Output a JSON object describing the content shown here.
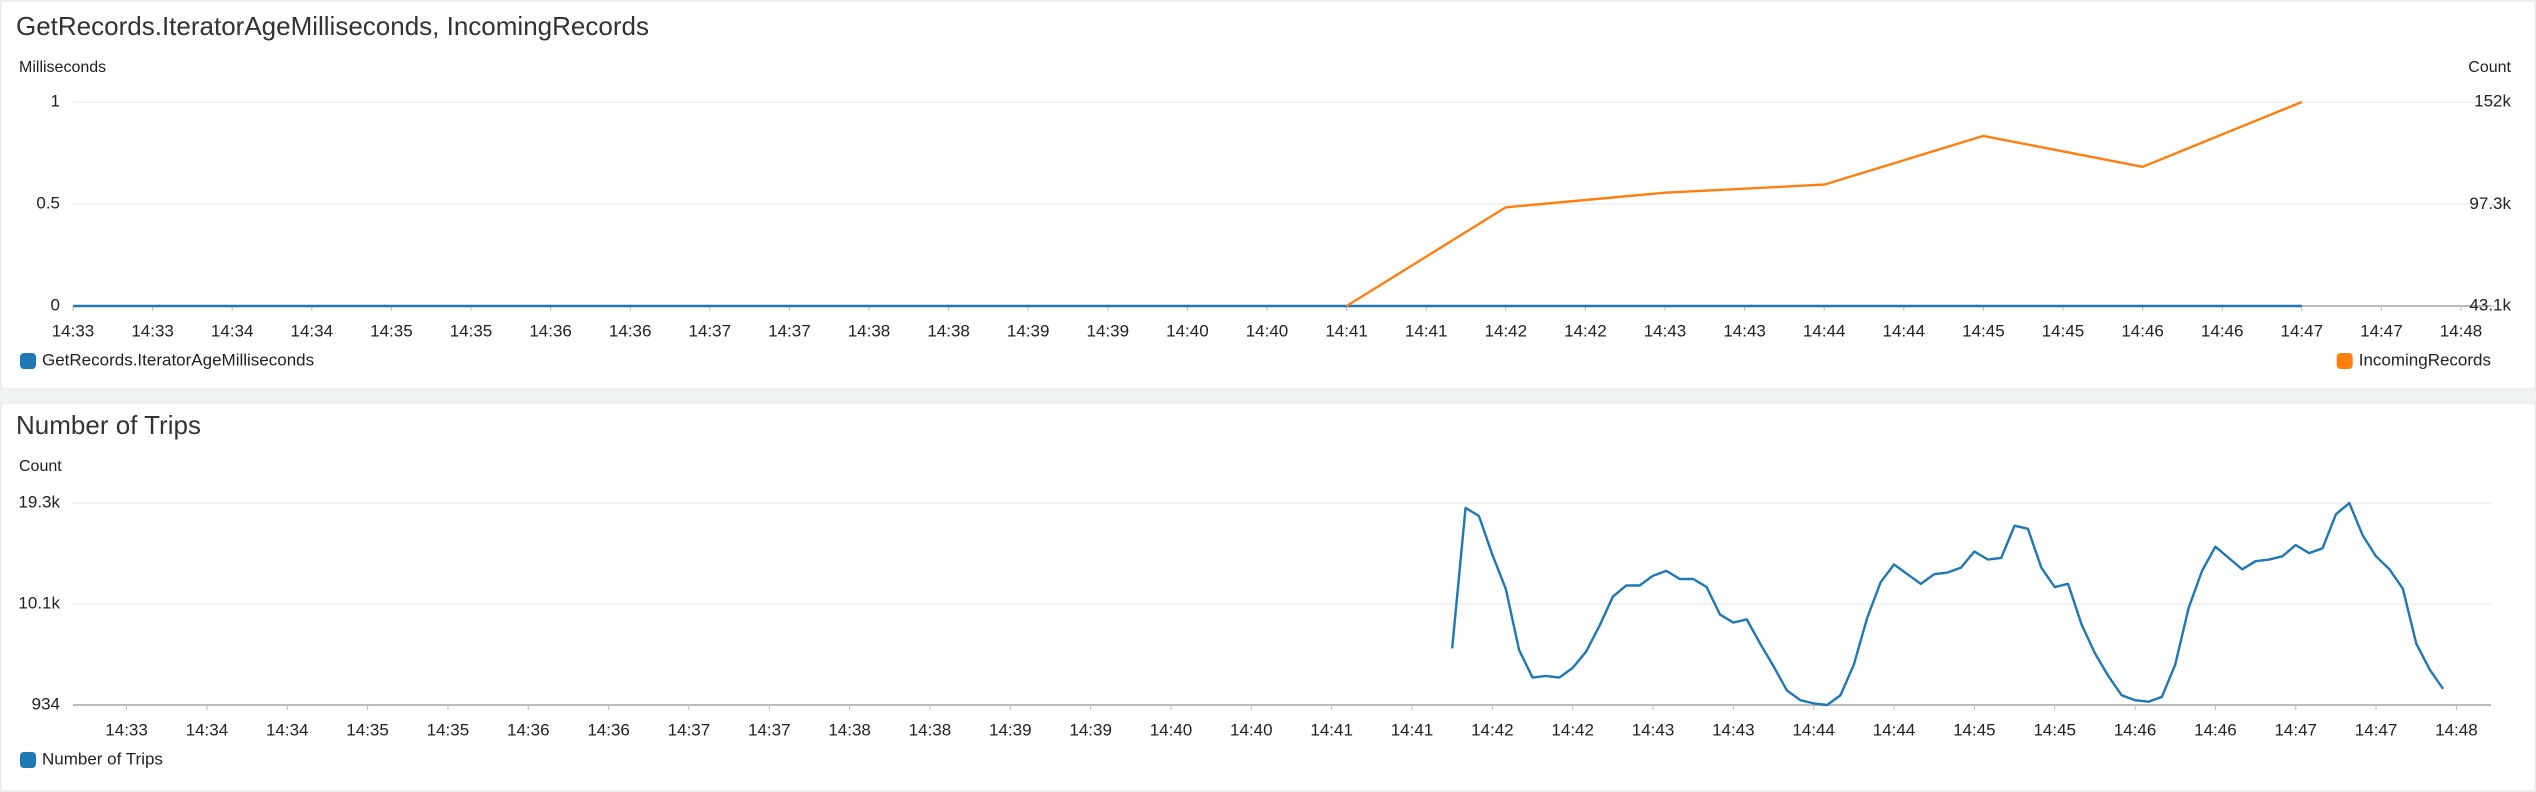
{
  "chart_data": [
    {
      "type": "line",
      "title": "GetRecords.IteratorAgeMilliseconds, IncomingRecords",
      "ylabel": "Milliseconds",
      "y2label": "Count",
      "categories": [
        "14:33",
        "14:33",
        "14:34",
        "14:34",
        "14:35",
        "14:35",
        "14:36",
        "14:36",
        "14:37",
        "14:37",
        "14:38",
        "14:38",
        "14:39",
        "14:39",
        "14:40",
        "14:40",
        "14:41",
        "14:41",
        "14:42",
        "14:42",
        "14:43",
        "14:43",
        "14:44",
        "14:44",
        "14:45",
        "14:45",
        "14:46",
        "14:46",
        "14:47",
        "14:47",
        "14:48"
      ],
      "ylim": [
        0,
        1
      ],
      "yticks": [
        0,
        0.5,
        1
      ],
      "y2lim": [
        43100,
        152000
      ],
      "y2ticks": [
        {
          "value": 43100,
          "label": "43.1k"
        },
        {
          "value": 97300,
          "label": "97.3k"
        },
        {
          "value": 152000,
          "label": "152k"
        }
      ],
      "grid": true,
      "legend": "bottom",
      "series": [
        {
          "name": "GetRecords.IteratorAgeMilliseconds",
          "color": "#1f77b4",
          "x": [
            "14:33",
            "14:34",
            "14:35",
            "14:36",
            "14:37",
            "14:38",
            "14:39",
            "14:40",
            "14:41",
            "14:42",
            "14:43",
            "14:44",
            "14:45",
            "14:46",
            "14:47"
          ],
          "values": [
            0,
            0,
            0,
            0,
            0,
            0,
            0,
            0,
            0,
            0,
            0,
            0,
            0,
            0,
            0
          ]
        },
        {
          "name": "IncomingRecords",
          "color": "#ff7f0e",
          "axis": "y2",
          "x": [
            "14:41",
            "14:42",
            "14:43",
            "14:44",
            "14:45",
            "14:46",
            "14:47"
          ],
          "values": [
            43100,
            95800,
            103600,
            107900,
            133900,
            117400,
            152000
          ]
        }
      ]
    },
    {
      "type": "line",
      "title": "Number of Trips",
      "ylabel": "Count",
      "categories": [
        null,
        null,
        null,
        null,
        "14:33",
        null,
        null,
        null,
        null,
        null,
        "14:34",
        null,
        null,
        null,
        null,
        null,
        "14:34",
        null,
        null,
        null,
        null,
        null,
        "14:35",
        null,
        null,
        null,
        null,
        null,
        "14:35",
        null,
        null,
        null,
        null,
        null,
        "14:36",
        null,
        null,
        null,
        null,
        null,
        "14:36",
        null,
        null,
        null,
        null,
        null,
        "14:37",
        null,
        null,
        null,
        null,
        null,
        "14:37",
        null,
        null,
        null,
        null,
        null,
        "14:38",
        null,
        null,
        null,
        null,
        null,
        "14:38",
        null,
        null,
        null,
        null,
        null,
        "14:39",
        null,
        null,
        null,
        null,
        null,
        "14:39",
        null,
        null,
        null,
        null,
        null,
        "14:40",
        null,
        null,
        null,
        null,
        null,
        "14:40",
        null,
        null,
        null,
        null,
        null,
        "14:41",
        null,
        null,
        null,
        null,
        null,
        "14:41",
        null,
        null,
        null,
        null,
        null,
        "14:42",
        null,
        null,
        null,
        null,
        null,
        "14:42",
        null,
        null,
        null,
        null,
        null,
        "14:43",
        null,
        null,
        null,
        null,
        null,
        "14:43",
        null,
        null,
        null,
        null,
        null,
        "14:44",
        null,
        null,
        null,
        null,
        null,
        "14:44",
        null,
        null,
        null,
        null,
        null,
        "14:45",
        null,
        null,
        null,
        null,
        null,
        "14:45",
        null,
        null,
        null,
        null,
        null,
        "14:46",
        null,
        null,
        null,
        null,
        null,
        "14:46",
        null,
        null,
        null,
        null,
        null,
        "14:47",
        null,
        null,
        null,
        null,
        null,
        "14:47",
        null,
        null,
        null,
        null,
        null,
        "14:48",
        null,
        null
      ],
      "ylim": [
        934,
        19300
      ],
      "yticks": [
        934,
        {
          "value": 10100,
          "label": "10.1k"
        },
        {
          "value": 19300,
          "label": "19.3k"
        }
      ],
      "grid": true,
      "legend": "bottom",
      "series": [
        {
          "name": "Number of Trips",
          "color": "#1f77b4",
          "values": [
            null,
            null,
            null,
            null,
            null,
            null,
            null,
            null,
            null,
            null,
            null,
            null,
            null,
            null,
            null,
            null,
            null,
            null,
            null,
            null,
            null,
            null,
            null,
            null,
            null,
            null,
            null,
            null,
            null,
            null,
            null,
            null,
            null,
            null,
            null,
            null,
            null,
            null,
            null,
            null,
            null,
            null,
            null,
            null,
            null,
            null,
            null,
            null,
            null,
            null,
            null,
            null,
            null,
            null,
            null,
            null,
            null,
            null,
            null,
            null,
            null,
            null,
            null,
            null,
            null,
            null,
            null,
            null,
            null,
            null,
            null,
            null,
            null,
            null,
            null,
            null,
            null,
            null,
            null,
            null,
            null,
            null,
            null,
            null,
            null,
            null,
            null,
            null,
            null,
            null,
            null,
            null,
            null,
            null,
            null,
            null,
            null,
            null,
            null,
            null,
            null,
            null,
            null,
            6080,
            18860,
            18120,
            14600,
            11510,
            5930,
            3430,
            3580,
            3430,
            4310,
            5780,
            8130,
            10780,
            11800,
            11800,
            12690,
            13130,
            12390,
            12390,
            11660,
            9160,
            8430,
            8720,
            6520,
            4460,
            2260,
            1370,
            1080,
            934,
            1820,
            4610,
            8870,
            12100,
            13710,
            12830,
            11950,
            12830,
            12980,
            13420,
            14890,
            14160,
            14300,
            17240,
            16950,
            13420,
            11660,
            11950,
            8280,
            5640,
            3580,
            1820,
            1370,
            1230,
            1670,
            4610,
            9750,
            13130,
            15330,
            14300,
            13270,
            14010,
            14160,
            14450,
            15480,
            14740,
            15180,
            18270,
            19300,
            16360,
            14450,
            13270,
            11510,
            6520,
            4170,
            2400,
            null,
            null,
            null
          ]
        }
      ]
    }
  ]
}
